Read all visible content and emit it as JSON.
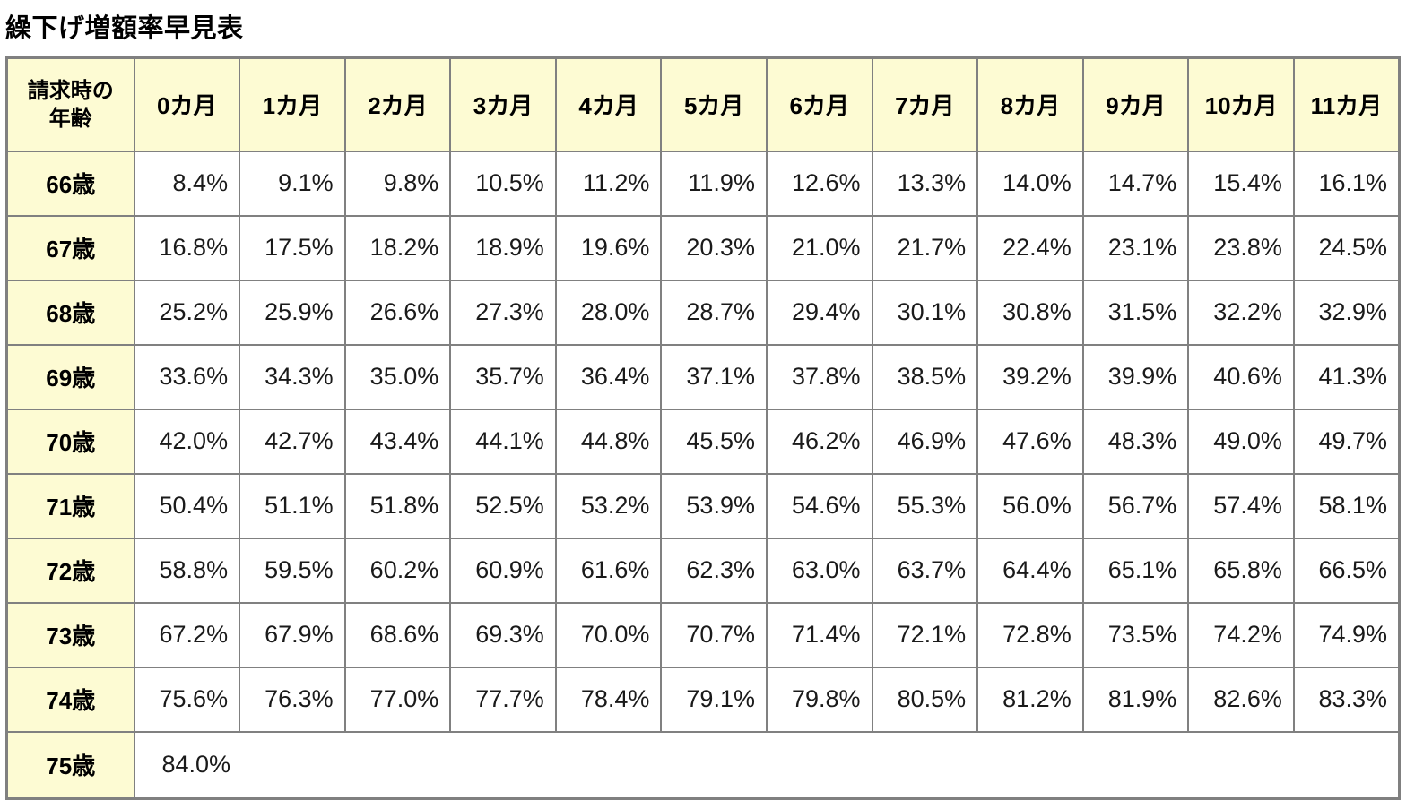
{
  "title": "繰下げ増額率早見表",
  "colors": {
    "header_bg": "#FDFBD3",
    "border": "#808080",
    "cell_bg": "#FFFFFF",
    "text": "#1A1A1A"
  },
  "table": {
    "corner_header": {
      "line1": "請求時の",
      "line2": "年齢"
    },
    "month_headers": [
      "0カ月",
      "1カ月",
      "2カ月",
      "3カ月",
      "4カ月",
      "5カ月",
      "6カ月",
      "7カ月",
      "8カ月",
      "9カ月",
      "10カ月",
      "11カ月"
    ],
    "rows": [
      {
        "age": "66歳",
        "values": [
          "8.4%",
          "9.1%",
          "9.8%",
          "10.5%",
          "11.2%",
          "11.9%",
          "12.6%",
          "13.3%",
          "14.0%",
          "14.7%",
          "15.4%",
          "16.1%"
        ]
      },
      {
        "age": "67歳",
        "values": [
          "16.8%",
          "17.5%",
          "18.2%",
          "18.9%",
          "19.6%",
          "20.3%",
          "21.0%",
          "21.7%",
          "22.4%",
          "23.1%",
          "23.8%",
          "24.5%"
        ]
      },
      {
        "age": "68歳",
        "values": [
          "25.2%",
          "25.9%",
          "26.6%",
          "27.3%",
          "28.0%",
          "28.7%",
          "29.4%",
          "30.1%",
          "30.8%",
          "31.5%",
          "32.2%",
          "32.9%"
        ]
      },
      {
        "age": "69歳",
        "values": [
          "33.6%",
          "34.3%",
          "35.0%",
          "35.7%",
          "36.4%",
          "37.1%",
          "37.8%",
          "38.5%",
          "39.2%",
          "39.9%",
          "40.6%",
          "41.3%"
        ]
      },
      {
        "age": "70歳",
        "values": [
          "42.0%",
          "42.7%",
          "43.4%",
          "44.1%",
          "44.8%",
          "45.5%",
          "46.2%",
          "46.9%",
          "47.6%",
          "48.3%",
          "49.0%",
          "49.7%"
        ]
      },
      {
        "age": "71歳",
        "values": [
          "50.4%",
          "51.1%",
          "51.8%",
          "52.5%",
          "53.2%",
          "53.9%",
          "54.6%",
          "55.3%",
          "56.0%",
          "56.7%",
          "57.4%",
          "58.1%"
        ]
      },
      {
        "age": "72歳",
        "values": [
          "58.8%",
          "59.5%",
          "60.2%",
          "60.9%",
          "61.6%",
          "62.3%",
          "63.0%",
          "63.7%",
          "64.4%",
          "65.1%",
          "65.8%",
          "66.5%"
        ]
      },
      {
        "age": "73歳",
        "values": [
          "67.2%",
          "67.9%",
          "68.6%",
          "69.3%",
          "70.0%",
          "70.7%",
          "71.4%",
          "72.1%",
          "72.8%",
          "73.5%",
          "74.2%",
          "74.9%"
        ]
      },
      {
        "age": "74歳",
        "values": [
          "75.6%",
          "76.3%",
          "77.0%",
          "77.7%",
          "78.4%",
          "79.1%",
          "79.8%",
          "80.5%",
          "81.2%",
          "81.9%",
          "82.6%",
          "83.3%"
        ]
      }
    ],
    "final_row": {
      "age": "75歳",
      "value": "84.0%"
    }
  }
}
